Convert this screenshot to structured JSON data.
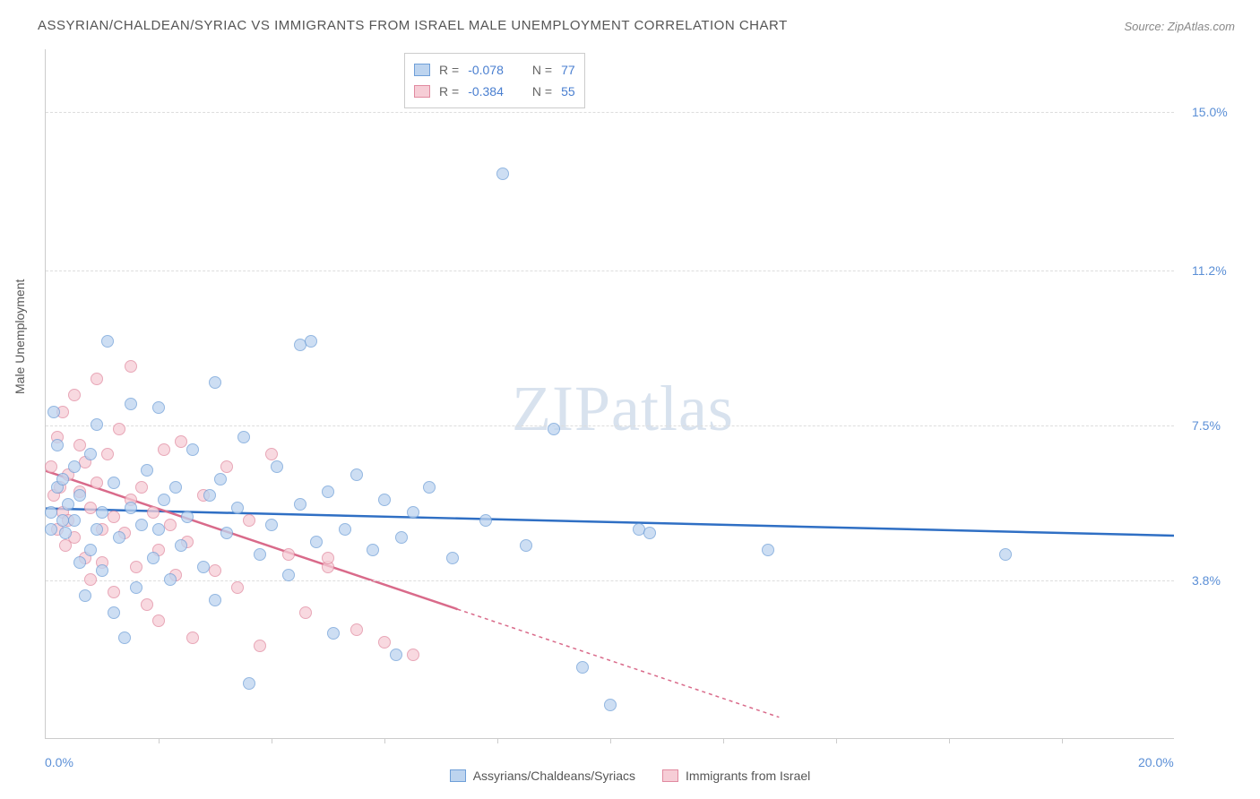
{
  "title": "ASSYRIAN/CHALDEAN/SYRIAC VS IMMIGRANTS FROM ISRAEL MALE UNEMPLOYMENT CORRELATION CHART",
  "source": "Source: ZipAtlas.com",
  "ylabel": "Male Unemployment",
  "watermark_zip": "ZIP",
  "watermark_atlas": "atlas",
  "chart": {
    "type": "scatter",
    "xlim": [
      0,
      20
    ],
    "ylim": [
      0,
      16.5
    ],
    "x_tick_labels": [
      "0.0%",
      "20.0%"
    ],
    "y_tick_labels": [
      "3.8%",
      "7.5%",
      "11.2%",
      "15.0%"
    ],
    "y_tick_values": [
      3.8,
      7.5,
      11.2,
      15.0
    ],
    "x_minor_ticks": [
      2,
      4,
      6,
      8,
      10,
      12,
      14,
      16,
      18
    ],
    "background_color": "#ffffff",
    "grid_color": "#dddddd",
    "axis_color": "#cccccc",
    "label_color": "#5b8fd6"
  },
  "series": [
    {
      "key": "assyrian",
      "label": "Assyrians/Chaldeans/Syriacs",
      "fill": "#bdd4ef",
      "stroke": "#6f9fd8",
      "line_color": "#2f6fc4",
      "r": "-0.078",
      "n": "77",
      "trend": {
        "x1": 0,
        "y1": 5.5,
        "x2": 20,
        "y2": 4.85,
        "solid_until": 20
      },
      "points": [
        [
          0.1,
          5.4
        ],
        [
          0.2,
          6.0
        ],
        [
          0.2,
          7.0
        ],
        [
          0.15,
          7.8
        ],
        [
          0.1,
          5.0
        ],
        [
          0.3,
          5.2
        ],
        [
          0.3,
          6.2
        ],
        [
          0.35,
          4.9
        ],
        [
          0.4,
          5.6
        ],
        [
          0.5,
          5.2
        ],
        [
          0.5,
          6.5
        ],
        [
          0.6,
          4.2
        ],
        [
          0.6,
          5.8
        ],
        [
          0.7,
          3.4
        ],
        [
          0.8,
          6.8
        ],
        [
          0.8,
          4.5
        ],
        [
          0.9,
          5.0
        ],
        [
          0.9,
          7.5
        ],
        [
          1.0,
          4.0
        ],
        [
          1.0,
          5.4
        ],
        [
          1.1,
          9.5
        ],
        [
          1.2,
          3.0
        ],
        [
          1.2,
          6.1
        ],
        [
          1.3,
          4.8
        ],
        [
          1.4,
          2.4
        ],
        [
          1.5,
          5.5
        ],
        [
          1.5,
          8.0
        ],
        [
          1.6,
          3.6
        ],
        [
          1.7,
          5.1
        ],
        [
          1.8,
          6.4
        ],
        [
          1.9,
          4.3
        ],
        [
          2.0,
          5.0
        ],
        [
          2.0,
          7.9
        ],
        [
          2.1,
          5.7
        ],
        [
          2.2,
          3.8
        ],
        [
          2.3,
          6.0
        ],
        [
          2.4,
          4.6
        ],
        [
          2.5,
          5.3
        ],
        [
          2.6,
          6.9
        ],
        [
          2.8,
          4.1
        ],
        [
          2.9,
          5.8
        ],
        [
          3.0,
          3.3
        ],
        [
          3.1,
          6.2
        ],
        [
          3.2,
          4.9
        ],
        [
          3.4,
          5.5
        ],
        [
          3.5,
          7.2
        ],
        [
          3.6,
          1.3
        ],
        [
          3.8,
          4.4
        ],
        [
          4.0,
          5.1
        ],
        [
          4.1,
          6.5
        ],
        [
          4.3,
          3.9
        ],
        [
          4.5,
          5.6
        ],
        [
          4.5,
          9.4
        ],
        [
          4.8,
          4.7
        ],
        [
          5.0,
          5.9
        ],
        [
          5.1,
          2.5
        ],
        [
          5.3,
          5.0
        ],
        [
          5.5,
          6.3
        ],
        [
          5.8,
          4.5
        ],
        [
          6.0,
          5.7
        ],
        [
          6.2,
          2.0
        ],
        [
          6.3,
          4.8
        ],
        [
          6.5,
          5.4
        ],
        [
          6.8,
          6.0
        ],
        [
          7.2,
          4.3
        ],
        [
          7.8,
          5.2
        ],
        [
          8.1,
          13.5
        ],
        [
          8.5,
          4.6
        ],
        [
          9.0,
          7.4
        ],
        [
          9.5,
          1.7
        ],
        [
          10.0,
          0.8
        ],
        [
          10.5,
          5.0
        ],
        [
          10.7,
          4.9
        ],
        [
          12.8,
          4.5
        ],
        [
          17.0,
          4.4
        ],
        [
          3.0,
          8.5
        ],
        [
          4.7,
          9.5
        ]
      ]
    },
    {
      "key": "israel",
      "label": "Immigrants from Israel",
      "fill": "#f6cdd6",
      "stroke": "#e18aa0",
      "line_color": "#d96a8a",
      "r": "-0.384",
      "n": "55",
      "trend": {
        "x1": 0,
        "y1": 6.4,
        "x2": 13,
        "y2": 0.5,
        "solid_until": 7.3
      },
      "points": [
        [
          0.1,
          6.5
        ],
        [
          0.15,
          5.8
        ],
        [
          0.2,
          7.2
        ],
        [
          0.2,
          5.0
        ],
        [
          0.25,
          6.0
        ],
        [
          0.3,
          5.4
        ],
        [
          0.3,
          7.8
        ],
        [
          0.35,
          4.6
        ],
        [
          0.4,
          6.3
        ],
        [
          0.4,
          5.2
        ],
        [
          0.5,
          8.2
        ],
        [
          0.5,
          4.8
        ],
        [
          0.6,
          5.9
        ],
        [
          0.6,
          7.0
        ],
        [
          0.7,
          4.3
        ],
        [
          0.7,
          6.6
        ],
        [
          0.8,
          5.5
        ],
        [
          0.8,
          3.8
        ],
        [
          0.9,
          6.1
        ],
        [
          0.9,
          8.6
        ],
        [
          1.0,
          5.0
        ],
        [
          1.0,
          4.2
        ],
        [
          1.1,
          6.8
        ],
        [
          1.2,
          5.3
        ],
        [
          1.2,
          3.5
        ],
        [
          1.3,
          7.4
        ],
        [
          1.4,
          4.9
        ],
        [
          1.5,
          5.7
        ],
        [
          1.5,
          8.9
        ],
        [
          1.6,
          4.1
        ],
        [
          1.7,
          6.0
        ],
        [
          1.8,
          3.2
        ],
        [
          1.9,
          5.4
        ],
        [
          2.0,
          4.5
        ],
        [
          2.0,
          2.8
        ],
        [
          2.1,
          6.9
        ],
        [
          2.2,
          5.1
        ],
        [
          2.3,
          3.9
        ],
        [
          2.4,
          7.1
        ],
        [
          2.5,
          4.7
        ],
        [
          2.6,
          2.4
        ],
        [
          2.8,
          5.8
        ],
        [
          3.0,
          4.0
        ],
        [
          3.2,
          6.5
        ],
        [
          3.4,
          3.6
        ],
        [
          3.6,
          5.2
        ],
        [
          3.8,
          2.2
        ],
        [
          4.0,
          6.8
        ],
        [
          4.3,
          4.4
        ],
        [
          4.6,
          3.0
        ],
        [
          5.0,
          4.1
        ],
        [
          5.0,
          4.3
        ],
        [
          5.5,
          2.6
        ],
        [
          6.0,
          2.3
        ],
        [
          6.5,
          2.0
        ]
      ]
    }
  ],
  "legend_top_r_label": "R =",
  "legend_top_n_label": "N ="
}
